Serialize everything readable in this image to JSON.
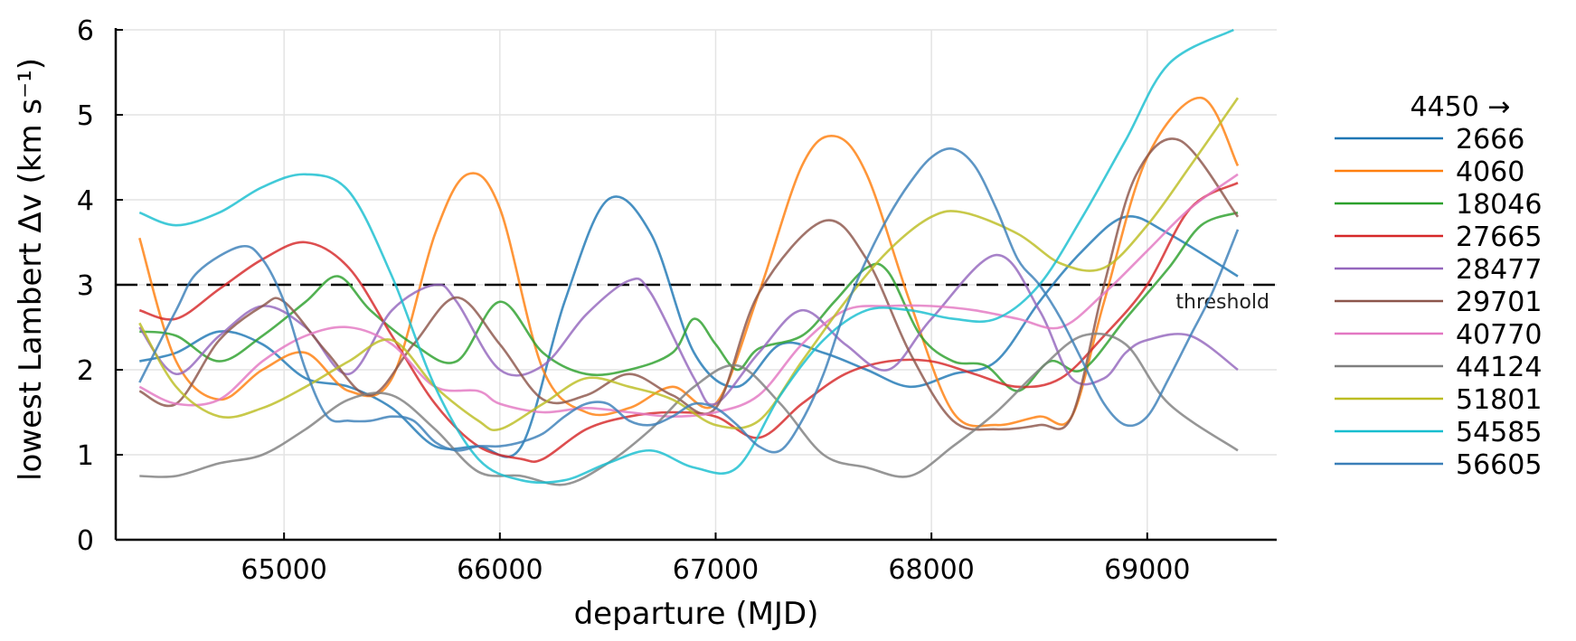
{
  "chart_data": {
    "type": "line",
    "xlabel": "departure (MJD)",
    "ylabel": "lowest Lambert Δv (km s⁻¹)",
    "xlim": [
      64220,
      69600
    ],
    "ylim": [
      0,
      6
    ],
    "xticks": [
      65000,
      66000,
      67000,
      68000,
      69000
    ],
    "yticks": [
      0,
      1,
      2,
      3,
      4,
      5,
      6
    ],
    "grid": true,
    "legend_title": "4450 →",
    "legend_position": "right",
    "threshold": {
      "y": 3,
      "label": "threshold"
    },
    "series": [
      {
        "name": "2666",
        "color": "#1f77b4",
        "x": [
          64330,
          64500,
          64700,
          64900,
          65100,
          65300,
          65500,
          65700,
          65900,
          66100,
          66300,
          66500,
          66700,
          66900,
          67100,
          67300,
          67500,
          67700,
          67900,
          68100,
          68300,
          68500,
          68700,
          68900,
          69100,
          69420
        ],
        "y": [
          2.1,
          2.2,
          2.45,
          2.3,
          1.9,
          1.8,
          1.55,
          1.1,
          1.1,
          1.1,
          2.8,
          4.0,
          3.6,
          2.2,
          1.8,
          2.3,
          2.2,
          2.0,
          1.8,
          1.95,
          2.1,
          2.8,
          3.4,
          3.8,
          3.6,
          3.1
        ]
      },
      {
        "name": "4060",
        "color": "#ff7f0e",
        "x": [
          64330,
          64500,
          64700,
          64900,
          65100,
          65300,
          65500,
          65700,
          65850,
          66000,
          66200,
          66400,
          66600,
          66800,
          67000,
          67200,
          67400,
          67550,
          67700,
          67900,
          68100,
          68300,
          68500,
          68650,
          68800,
          69000,
          69250,
          69420
        ],
        "y": [
          3.55,
          2.1,
          1.65,
          2.0,
          2.2,
          1.75,
          1.9,
          3.6,
          4.3,
          3.9,
          2.0,
          1.5,
          1.55,
          1.8,
          1.6,
          2.9,
          4.4,
          4.75,
          4.3,
          2.8,
          1.5,
          1.35,
          1.45,
          1.45,
          2.8,
          4.5,
          5.2,
          4.4
        ]
      },
      {
        "name": "18046",
        "color": "#2ca02c",
        "x": [
          64330,
          64500,
          64700,
          64900,
          65100,
          65250,
          65400,
          65600,
          65800,
          66000,
          66200,
          66400,
          66600,
          66800,
          66900,
          67000,
          67100,
          67200,
          67400,
          67550,
          67700,
          67800,
          67950,
          68100,
          68250,
          68400,
          68550,
          68700,
          68900,
          69100,
          69250,
          69420
        ],
        "y": [
          2.45,
          2.4,
          2.1,
          2.4,
          2.8,
          3.1,
          2.7,
          2.3,
          2.1,
          2.8,
          2.2,
          1.95,
          2.0,
          2.2,
          2.6,
          2.3,
          2.0,
          2.25,
          2.4,
          2.8,
          3.2,
          3.15,
          2.4,
          2.1,
          2.05,
          1.75,
          2.1,
          2.0,
          2.6,
          3.2,
          3.7,
          3.85
        ]
      },
      {
        "name": "27665",
        "color": "#d62728",
        "x": [
          64330,
          64500,
          64700,
          64900,
          65100,
          65300,
          65500,
          65700,
          65900,
          66100,
          66200,
          66400,
          66600,
          66800,
          67000,
          67200,
          67400,
          67600,
          67800,
          68000,
          68200,
          68400,
          68600,
          68800,
          69000,
          69200,
          69420
        ],
        "y": [
          2.7,
          2.6,
          2.95,
          3.3,
          3.5,
          3.2,
          2.4,
          1.6,
          1.1,
          0.95,
          0.95,
          1.3,
          1.45,
          1.5,
          1.45,
          1.2,
          1.6,
          1.95,
          2.1,
          2.1,
          1.95,
          1.8,
          1.9,
          2.4,
          3.0,
          3.9,
          4.2
        ]
      },
      {
        "name": "28477",
        "color": "#9467bd",
        "x": [
          64330,
          64500,
          64700,
          64900,
          65100,
          65300,
          65500,
          65700,
          65800,
          66000,
          66200,
          66400,
          66600,
          66700,
          66900,
          67000,
          67200,
          67400,
          67600,
          67800,
          68000,
          68300,
          68500,
          68650,
          68800,
          68900,
          69000,
          69200,
          69420
        ],
        "y": [
          2.5,
          1.95,
          2.4,
          2.75,
          2.5,
          1.95,
          2.7,
          3.0,
          2.8,
          2.0,
          2.05,
          2.65,
          3.05,
          2.9,
          1.9,
          1.6,
          2.2,
          2.7,
          2.3,
          2.0,
          2.6,
          3.35,
          2.7,
          1.9,
          1.9,
          2.2,
          2.35,
          2.4,
          2.0
        ]
      },
      {
        "name": "29701",
        "color": "#8c564b",
        "x": [
          64330,
          64500,
          64700,
          64900,
          65000,
          65200,
          65400,
          65600,
          65800,
          66000,
          66200,
          66400,
          66600,
          66800,
          67000,
          67200,
          67500,
          67700,
          67900,
          68100,
          68300,
          68500,
          68650,
          68800,
          68950,
          69150,
          69420
        ],
        "y": [
          1.75,
          1.6,
          2.35,
          2.75,
          2.8,
          2.2,
          1.7,
          2.3,
          2.85,
          2.3,
          1.65,
          1.7,
          1.95,
          1.7,
          1.55,
          2.9,
          3.75,
          3.3,
          2.2,
          1.4,
          1.3,
          1.35,
          1.45,
          3.0,
          4.3,
          4.7,
          3.8
        ]
      },
      {
        "name": "40770",
        "color": "#e377c2",
        "x": [
          64330,
          64500,
          64700,
          64900,
          65100,
          65300,
          65500,
          65700,
          65900,
          66000,
          66200,
          66400,
          66600,
          66800,
          67000,
          67200,
          67400,
          67600,
          67800,
          68000,
          68200,
          68400,
          68600,
          68800,
          69000,
          69200,
          69420
        ],
        "y": [
          1.8,
          1.6,
          1.65,
          2.1,
          2.4,
          2.5,
          2.3,
          1.8,
          1.75,
          1.6,
          1.5,
          1.55,
          1.5,
          1.45,
          1.5,
          1.7,
          2.3,
          2.7,
          2.75,
          2.75,
          2.7,
          2.6,
          2.5,
          2.9,
          3.4,
          3.9,
          4.3
        ]
      },
      {
        "name": "44124",
        "color": "#7f7f7f",
        "x": [
          64330,
          64500,
          64700,
          64900,
          65100,
          65300,
          65500,
          65700,
          65900,
          66100,
          66300,
          66500,
          66700,
          66900,
          67100,
          67300,
          67500,
          67700,
          67900,
          68100,
          68300,
          68500,
          68700,
          68900,
          69100,
          69420
        ],
        "y": [
          0.75,
          0.75,
          0.9,
          1.0,
          1.3,
          1.65,
          1.7,
          1.3,
          0.8,
          0.75,
          0.65,
          0.9,
          1.3,
          1.8,
          2.05,
          1.6,
          1.0,
          0.85,
          0.75,
          1.1,
          1.5,
          2.0,
          2.4,
          2.3,
          1.6,
          1.05
        ]
      },
      {
        "name": "51801",
        "color": "#bcbd22",
        "x": [
          64330,
          64500,
          64700,
          64900,
          65100,
          65300,
          65500,
          65700,
          65900,
          66000,
          66200,
          66400,
          66600,
          66800,
          67000,
          67200,
          67400,
          67600,
          67800,
          68000,
          68150,
          68400,
          68600,
          68800,
          69000,
          69200,
          69420
        ],
        "y": [
          2.55,
          1.8,
          1.45,
          1.55,
          1.8,
          2.1,
          2.35,
          1.8,
          1.4,
          1.3,
          1.6,
          1.9,
          1.8,
          1.65,
          1.35,
          1.4,
          2.1,
          2.8,
          3.4,
          3.8,
          3.85,
          3.6,
          3.25,
          3.2,
          3.7,
          4.4,
          5.2
        ]
      },
      {
        "name": "54585",
        "color": "#17becf",
        "x": [
          64330,
          64500,
          64700,
          64900,
          65100,
          65300,
          65500,
          65700,
          65900,
          66100,
          66300,
          66500,
          66700,
          66900,
          67100,
          67300,
          67500,
          67700,
          67900,
          68100,
          68300,
          68500,
          68700,
          68900,
          69100,
          69400
        ],
        "y": [
          3.85,
          3.7,
          3.85,
          4.15,
          4.3,
          4.1,
          3.1,
          1.8,
          0.95,
          0.7,
          0.7,
          0.9,
          1.05,
          0.85,
          0.85,
          1.7,
          2.35,
          2.7,
          2.7,
          2.6,
          2.6,
          3.0,
          3.8,
          4.7,
          5.6,
          6.0
        ]
      },
      {
        "name": "56605",
        "color": "#3a7fb8",
        "x": [
          64330,
          64500,
          64600,
          64800,
          64900,
          65000,
          65100,
          65200,
          65300,
          65400,
          65500,
          65600,
          65700,
          65800,
          65900,
          66000,
          66100,
          66200,
          66300,
          66400,
          66500,
          66600,
          66700,
          66800,
          66900,
          67000,
          67100,
          67200,
          67300,
          67400,
          67500,
          67600,
          67700,
          67800,
          67900,
          68000,
          68100,
          68200,
          68300,
          68400,
          68500,
          68600,
          68700,
          68800,
          68900,
          69000,
          69100,
          69200,
          69300,
          69420
        ],
        "y": [
          1.85,
          2.7,
          3.15,
          3.45,
          3.3,
          2.8,
          2.0,
          1.45,
          1.4,
          1.4,
          1.45,
          1.4,
          1.15,
          1.05,
          1.1,
          1.1,
          1.15,
          1.25,
          1.45,
          1.6,
          1.6,
          1.4,
          1.35,
          1.45,
          1.6,
          1.55,
          1.35,
          1.1,
          1.05,
          1.4,
          1.95,
          2.7,
          3.3,
          3.8,
          4.2,
          4.5,
          4.6,
          4.4,
          3.9,
          3.3,
          3.0,
          2.6,
          2.1,
          1.6,
          1.35,
          1.45,
          1.9,
          2.4,
          2.9,
          3.65
        ]
      }
    ]
  }
}
